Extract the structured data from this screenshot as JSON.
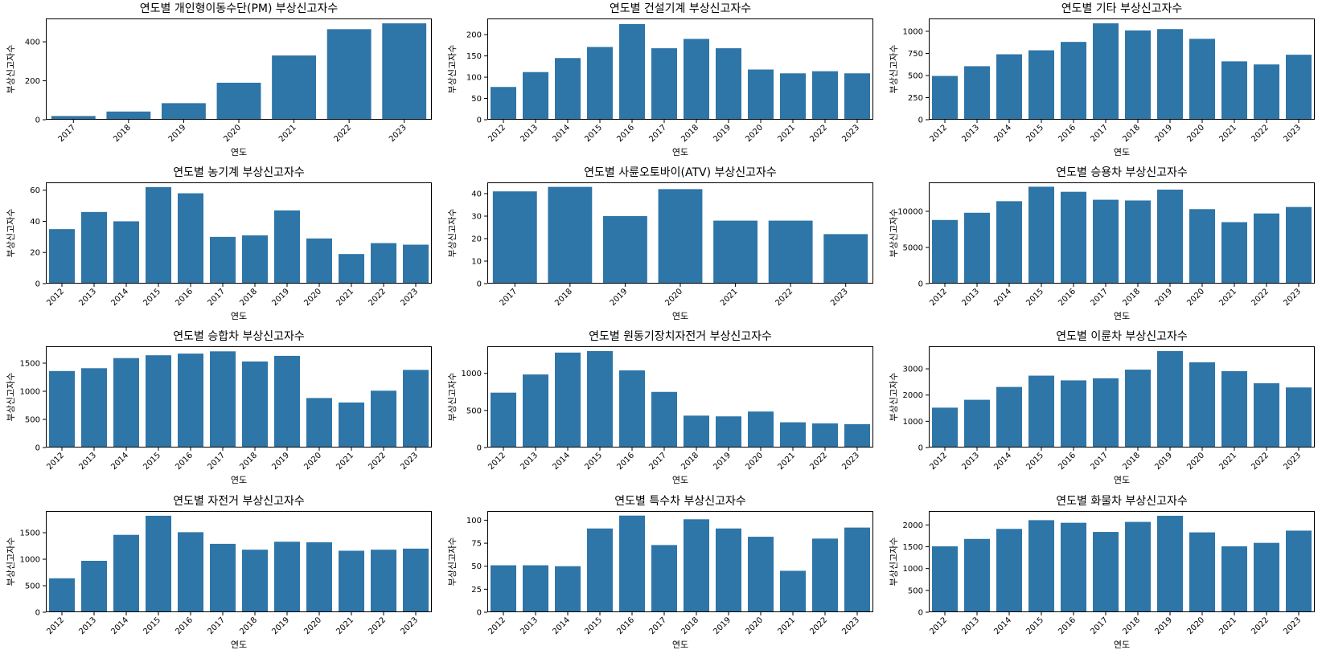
{
  "chart_data": [
    {
      "type": "bar",
      "title": "연도별 개인형이동수단(PM) 부상신고자수",
      "xlabel": "연도",
      "ylabel": "부상신고자수",
      "categories": [
        "2017",
        "2018",
        "2019",
        "2020",
        "2021",
        "2022",
        "2023"
      ],
      "values": [
        19,
        42,
        85,
        190,
        330,
        465,
        495
      ],
      "ylim": [
        0,
        520
      ],
      "yticks": [
        0,
        200,
        400
      ],
      "grid": false,
      "color": "#2e75a8"
    },
    {
      "type": "bar",
      "title": "연도별 건설기계 부상신고자수",
      "xlabel": "연도",
      "ylabel": "부상신고자수",
      "categories": [
        "2012",
        "2013",
        "2014",
        "2015",
        "2016",
        "2017",
        "2018",
        "2019",
        "2020",
        "2021",
        "2022",
        "2023"
      ],
      "values": [
        77,
        112,
        145,
        171,
        225,
        168,
        190,
        168,
        118,
        109,
        114,
        109
      ],
      "ylim": [
        0,
        238
      ],
      "yticks": [
        0,
        50,
        100,
        150,
        200
      ],
      "grid": false,
      "color": "#2e75a8"
    },
    {
      "type": "bar",
      "title": "연도별 기타 부상신고자수",
      "xlabel": "연도",
      "ylabel": "부상신고자수",
      "categories": [
        "2012",
        "2013",
        "2014",
        "2015",
        "2016",
        "2017",
        "2018",
        "2019",
        "2020",
        "2021",
        "2022",
        "2023"
      ],
      "values": [
        495,
        605,
        740,
        785,
        880,
        1090,
        1010,
        1025,
        915,
        660,
        625,
        735
      ],
      "ylim": [
        0,
        1145
      ],
      "yticks": [
        0,
        250,
        500,
        750,
        1000
      ],
      "grid": false,
      "color": "#2e75a8"
    },
    {
      "type": "bar",
      "title": "연도별 농기계 부상신고자수",
      "xlabel": "연도",
      "ylabel": "부상신고자수",
      "categories": [
        "2012",
        "2013",
        "2014",
        "2015",
        "2016",
        "2017",
        "2018",
        "2019",
        "2020",
        "2021",
        "2022",
        "2023"
      ],
      "values": [
        35,
        46,
        40,
        62,
        58,
        30,
        31,
        47,
        29,
        19,
        26,
        25
      ],
      "ylim": [
        0,
        65
      ],
      "yticks": [
        0,
        20,
        40,
        60
      ],
      "grid": false,
      "color": "#2e75a8"
    },
    {
      "type": "bar",
      "title": "연도별 사륜오토바이(ATV) 부상신고자수",
      "xlabel": "연도",
      "ylabel": "부상신고자수",
      "categories": [
        "2017",
        "2018",
        "2019",
        "2020",
        "2021",
        "2022",
        "2023"
      ],
      "values": [
        41,
        43,
        30,
        42,
        28,
        28,
        22
      ],
      "ylim": [
        0,
        45
      ],
      "yticks": [
        0,
        10,
        20,
        30,
        40
      ],
      "grid": false,
      "color": "#2e75a8"
    },
    {
      "type": "bar",
      "title": "연도별 승용차 부상신고자수",
      "xlabel": "연도",
      "ylabel": "부상신고자수",
      "categories": [
        "2012",
        "2013",
        "2014",
        "2015",
        "2016",
        "2017",
        "2018",
        "2019",
        "2020",
        "2021",
        "2022",
        "2023"
      ],
      "values": [
        8800,
        9800,
        11400,
        13400,
        12700,
        11600,
        11500,
        13000,
        10300,
        8500,
        9700,
        10600
      ],
      "ylim": [
        0,
        14000
      ],
      "yticks": [
        0,
        5000,
        10000
      ],
      "grid": false,
      "color": "#2e75a8"
    },
    {
      "type": "bar",
      "title": "연도별 승합차 부상신고자수",
      "xlabel": "연도",
      "ylabel": "부상신고자수",
      "categories": [
        "2012",
        "2013",
        "2014",
        "2015",
        "2016",
        "2017",
        "2018",
        "2019",
        "2020",
        "2021",
        "2022",
        "2023"
      ],
      "values": [
        1360,
        1410,
        1590,
        1640,
        1670,
        1710,
        1530,
        1630,
        880,
        800,
        1010,
        1380
      ],
      "ylim": [
        0,
        1800
      ],
      "yticks": [
        0,
        500,
        1000,
        1500
      ],
      "grid": false,
      "color": "#2e75a8"
    },
    {
      "type": "bar",
      "title": "연도별 원동기장치자전거 부상신고자수",
      "xlabel": "연도",
      "ylabel": "부상신고자수",
      "categories": [
        "2012",
        "2013",
        "2014",
        "2015",
        "2016",
        "2017",
        "2018",
        "2019",
        "2020",
        "2021",
        "2022",
        "2023"
      ],
      "values": [
        740,
        985,
        1280,
        1300,
        1040,
        750,
        430,
        420,
        485,
        340,
        325,
        315
      ],
      "ylim": [
        0,
        1365
      ],
      "yticks": [
        0,
        500,
        1000
      ],
      "grid": false,
      "color": "#2e75a8"
    },
    {
      "type": "bar",
      "title": "연도별 이륜차 부상신고자수",
      "xlabel": "연도",
      "ylabel": "부상신고자수",
      "categories": [
        "2012",
        "2013",
        "2014",
        "2015",
        "2016",
        "2017",
        "2018",
        "2019",
        "2020",
        "2021",
        "2022",
        "2023"
      ],
      "values": [
        1520,
        1820,
        2310,
        2740,
        2560,
        2640,
        2970,
        3680,
        3250,
        2910,
        2450,
        2290
      ],
      "ylim": [
        0,
        3860
      ],
      "yticks": [
        0,
        1000,
        2000,
        3000
      ],
      "grid": false,
      "color": "#2e75a8"
    },
    {
      "type": "bar",
      "title": "연도별 자전거 부상신고자수",
      "xlabel": "연도",
      "ylabel": "부상신고자수",
      "categories": [
        "2012",
        "2013",
        "2014",
        "2015",
        "2016",
        "2017",
        "2018",
        "2019",
        "2020",
        "2021",
        "2022",
        "2023"
      ],
      "values": [
        640,
        970,
        1460,
        1820,
        1510,
        1290,
        1180,
        1330,
        1320,
        1160,
        1180,
        1200
      ],
      "ylim": [
        0,
        1910
      ],
      "yticks": [
        0,
        500,
        1000,
        1500
      ],
      "grid": false,
      "color": "#2e75a8"
    },
    {
      "type": "bar",
      "title": "연도별 특수차 부상신고자수",
      "xlabel": "연도",
      "ylabel": "부상신고자수",
      "categories": [
        "2012",
        "2013",
        "2014",
        "2015",
        "2016",
        "2017",
        "2018",
        "2019",
        "2020",
        "2021",
        "2022",
        "2023"
      ],
      "values": [
        51,
        51,
        50,
        91,
        105,
        73,
        101,
        91,
        82,
        45,
        80,
        92
      ],
      "ylim": [
        0,
        110
      ],
      "yticks": [
        0,
        25,
        50,
        75,
        100
      ],
      "grid": false,
      "color": "#2e75a8"
    },
    {
      "type": "bar",
      "title": "연도별 화물차 부상신고자수",
      "xlabel": "연도",
      "ylabel": "부상신고자수",
      "categories": [
        "2012",
        "2013",
        "2014",
        "2015",
        "2016",
        "2017",
        "2018",
        "2019",
        "2020",
        "2021",
        "2022",
        "2023"
      ],
      "values": [
        1510,
        1680,
        1910,
        2110,
        2050,
        1840,
        2070,
        2210,
        1830,
        1510,
        1590,
        1870
      ],
      "ylim": [
        0,
        2320
      ],
      "yticks": [
        0,
        500,
        1000,
        1500,
        2000
      ],
      "grid": false,
      "color": "#2e75a8"
    }
  ]
}
